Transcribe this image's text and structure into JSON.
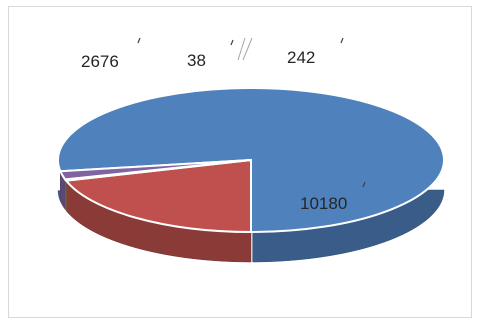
{
  "chart_data": {
    "type": "pie",
    "style": "3d",
    "values": [
      10180,
      2676,
      38,
      242
    ],
    "data_labels": [
      "10180",
      "2676",
      "38",
      "242"
    ],
    "colors": [
      "#4f81bd",
      "#c0504d",
      "#9bbb59",
      "#8064a2"
    ],
    "title": "",
    "legend": "none"
  }
}
